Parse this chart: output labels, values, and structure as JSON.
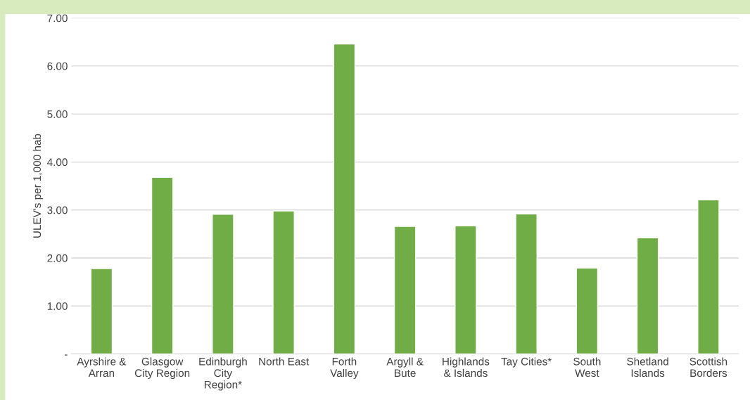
{
  "chart_data": {
    "type": "bar",
    "ylabel": "ULEV's per 1,000 hab",
    "categories": [
      "Ayrshire &\nArran",
      "Glasgow\nCity Region",
      "Edinburgh\nCity\nRegion*",
      "North East",
      "Forth\nValley",
      "Argyll &\nBute",
      "Highlands\n& Islands",
      "Tay Cities*",
      "South\nWest",
      "Shetland\nIslands",
      "Scottish\nBorders"
    ],
    "values": [
      1.78,
      3.68,
      2.91,
      2.98,
      6.46,
      2.66,
      2.67,
      2.92,
      1.79,
      2.42,
      3.21
    ],
    "color": "#70ad47",
    "ylim": [
      0,
      7
    ],
    "yticks": [
      {
        "value": 0,
        "label": "-"
      },
      {
        "value": 1,
        "label": "1.00"
      },
      {
        "value": 2,
        "label": "2.00"
      },
      {
        "value": 3,
        "label": "3.00"
      },
      {
        "value": 4,
        "label": "4.00"
      },
      {
        "value": 5,
        "label": "5.00"
      },
      {
        "value": 6,
        "label": "6.00"
      },
      {
        "value": 7,
        "label": "7.00"
      }
    ],
    "grid": "y",
    "legend": false
  }
}
